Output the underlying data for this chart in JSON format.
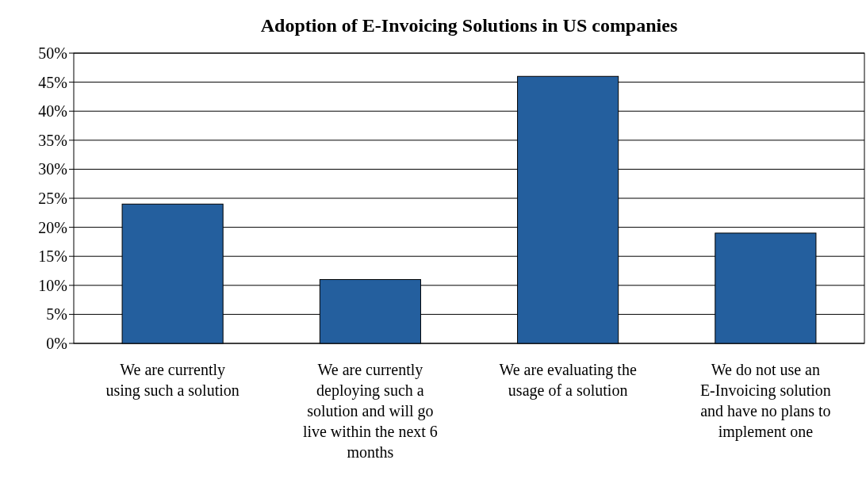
{
  "chart_data": {
    "type": "bar",
    "title": "Adoption of E-Invoicing Solutions in US companies",
    "categories": [
      "We are currently using such a solution",
      "We are currently deploying such a solution and will go live within the next 6 months",
      "We are evaluating the usage of a solution",
      "We do not use an E-Invoicing solution and have no plans to implement one"
    ],
    "values": [
      24,
      11,
      46,
      19
    ],
    "color": "#245f9e",
    "ylim": [
      0,
      50
    ],
    "yticks": [
      {
        "value": 0,
        "label": "0%"
      },
      {
        "value": 5,
        "label": "5%"
      },
      {
        "value": 10,
        "label": "10%"
      },
      {
        "value": 15,
        "label": "15%"
      },
      {
        "value": 20,
        "label": "20%"
      },
      {
        "value": 25,
        "label": "25%"
      },
      {
        "value": 30,
        "label": "30%"
      },
      {
        "value": 35,
        "label": "35%"
      },
      {
        "value": 40,
        "label": "40%"
      },
      {
        "value": 45,
        "label": "45%"
      },
      {
        "value": 50,
        "label": "50%"
      }
    ],
    "grid": "y"
  }
}
